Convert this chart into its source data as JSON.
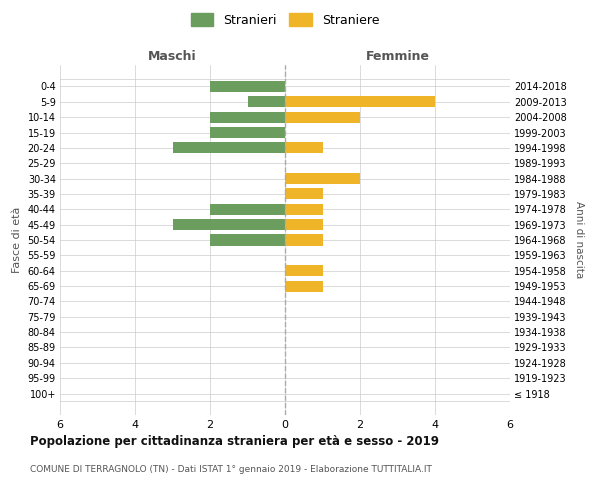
{
  "age_groups": [
    "100+",
    "95-99",
    "90-94",
    "85-89",
    "80-84",
    "75-79",
    "70-74",
    "65-69",
    "60-64",
    "55-59",
    "50-54",
    "45-49",
    "40-44",
    "35-39",
    "30-34",
    "25-29",
    "20-24",
    "15-19",
    "10-14",
    "5-9",
    "0-4"
  ],
  "birth_years": [
    "≤ 1918",
    "1919-1923",
    "1924-1928",
    "1929-1933",
    "1934-1938",
    "1939-1943",
    "1944-1948",
    "1949-1953",
    "1954-1958",
    "1959-1963",
    "1964-1968",
    "1969-1973",
    "1974-1978",
    "1979-1983",
    "1984-1988",
    "1989-1993",
    "1994-1998",
    "1999-2003",
    "2004-2008",
    "2009-2013",
    "2014-2018"
  ],
  "maschi": [
    0,
    0,
    0,
    0,
    0,
    0,
    0,
    0,
    0,
    0,
    2,
    3,
    2,
    0,
    0,
    0,
    3,
    2,
    2,
    1,
    2
  ],
  "femmine": [
    0,
    0,
    0,
    0,
    0,
    0,
    0,
    1,
    1,
    0,
    1,
    1,
    1,
    1,
    2,
    0,
    1,
    0,
    2,
    4,
    0
  ],
  "color_maschi": "#6b9e5e",
  "color_femmine": "#f0b429",
  "title": "Popolazione per cittadinanza straniera per età e sesso - 2019",
  "subtitle": "COMUNE DI TERRAGNOLO (TN) - Dati ISTAT 1° gennaio 2019 - Elaborazione TUTTITALIA.IT",
  "ylabel_left": "Fasce di età",
  "ylabel_right": "Anni di nascita",
  "xlabel_left": "Maschi",
  "xlabel_right": "Femmine",
  "legend_maschi": "Stranieri",
  "legend_femmine": "Straniere",
  "xlim": 6,
  "background_color": "#ffffff",
  "grid_color": "#cccccc"
}
